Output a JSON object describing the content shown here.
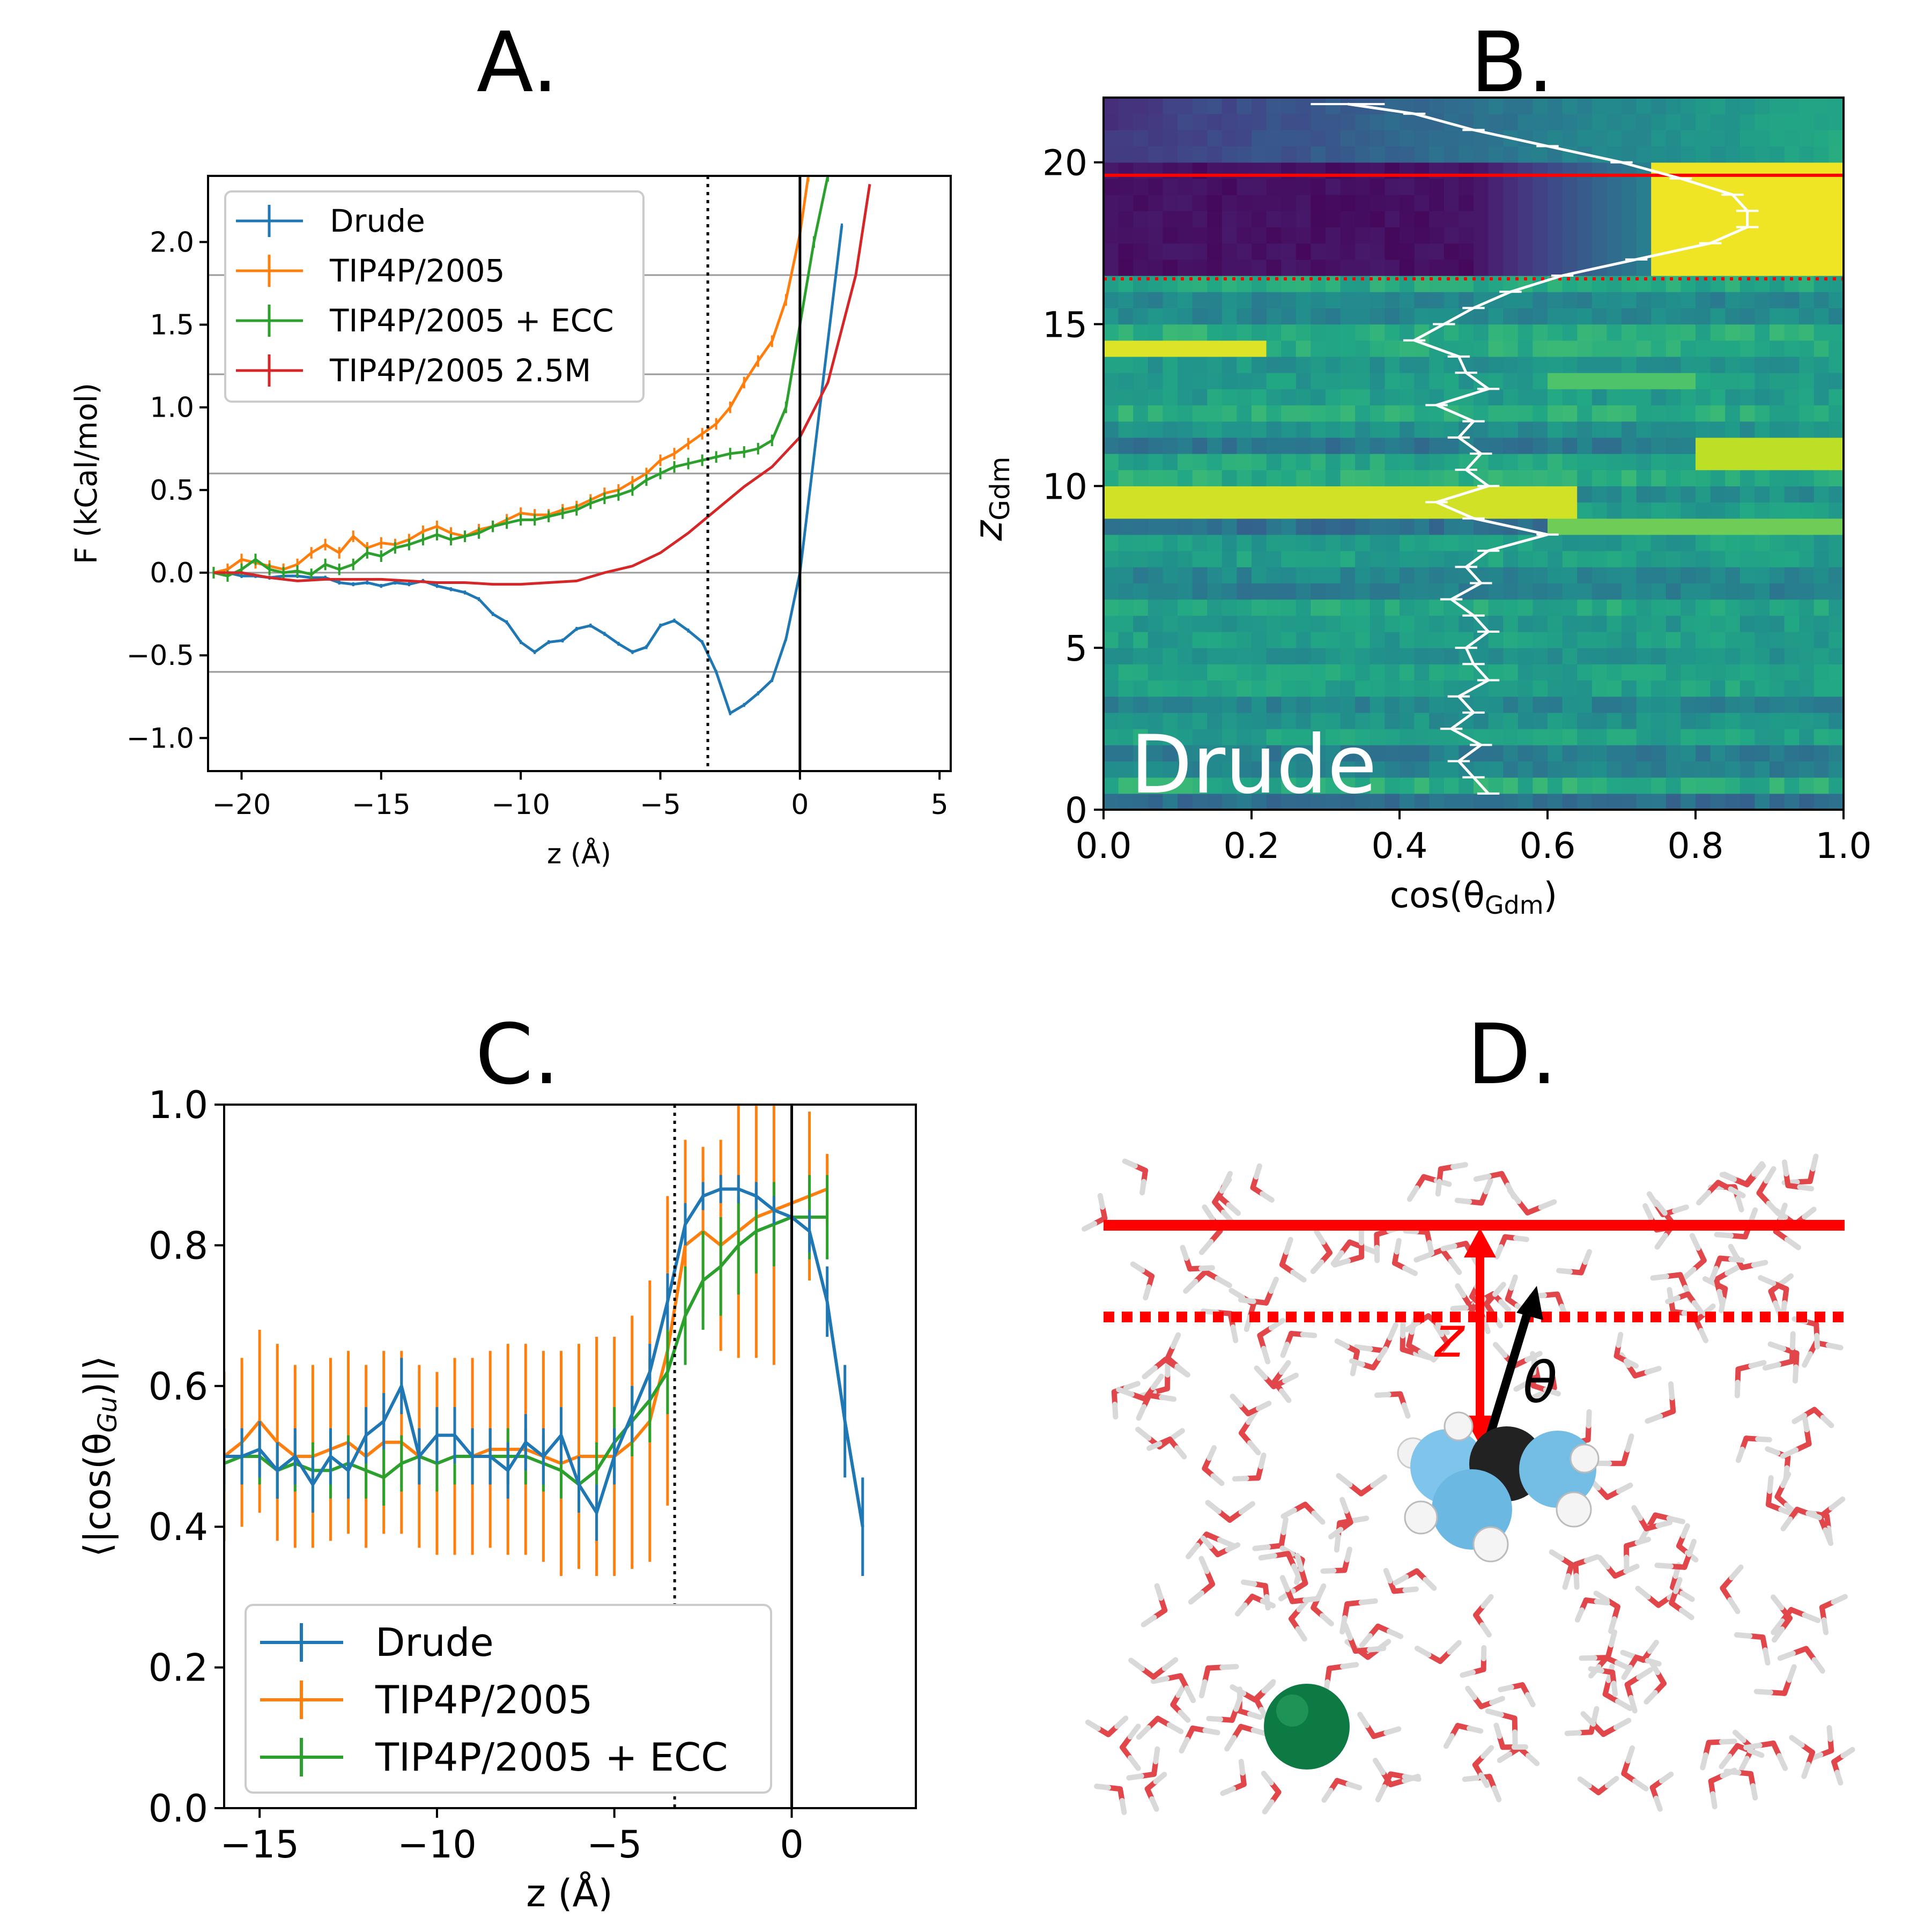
{
  "colors": {
    "drude": "#1f77b4",
    "tip4p": "#ff7f0e",
    "ecc": "#2ca02c",
    "salt": "#d62728",
    "interface_red": "#ff0000",
    "white_line": "#ffffff"
  },
  "chart_data": [
    {
      "panel": "A.",
      "type": "line",
      "xlabel": "z (Å)",
      "ylabel": "F (kCal/mol)",
      "xlim": [
        -21.2,
        5.4
      ],
      "ylim": [
        -1.2,
        2.4
      ],
      "xticks": [
        "−20",
        "−15",
        "−10",
        "−5",
        "0",
        "5"
      ],
      "xtick_values": [
        -20,
        -15,
        -10,
        -5,
        0,
        5
      ],
      "yticks": [
        "−1.0",
        "−0.5",
        "0.0",
        "0.5",
        "1.0",
        "1.5",
        "2.0"
      ],
      "ytick_values": [
        -1.0,
        -0.5,
        0.0,
        0.5,
        1.0,
        1.5,
        2.0
      ],
      "hlines": [
        -0.6,
        0.0,
        0.6,
        1.2,
        1.8
      ],
      "vline_dotted": -3.3,
      "vline_solid": 0,
      "legend": [
        "Drude",
        "TIP4P/2005",
        "TIP4P/2005 + ECC",
        "TIP4P/2005 2.5M"
      ],
      "series": [
        {
          "name": "Drude",
          "color": "#1f77b4",
          "x": [
            -21,
            -20.5,
            -20,
            -19.5,
            -19,
            -18.5,
            -18,
            -17.5,
            -17,
            -16.5,
            -16,
            -15.5,
            -15,
            -14.5,
            -14,
            -13.5,
            -13,
            -12.5,
            -12,
            -11.5,
            -11,
            -10.5,
            -10,
            -9.5,
            -9,
            -8.5,
            -8,
            -7.5,
            -7,
            -6.5,
            -6,
            -5.5,
            -5,
            -4.5,
            -4,
            -3.5,
            -3,
            -2.5,
            -2,
            -1.5,
            -1,
            -0.5,
            0,
            0.5,
            1,
            1.5
          ],
          "y": [
            0,
            0,
            -0.02,
            -0.02,
            -0.03,
            -0.02,
            -0.02,
            -0.03,
            -0.03,
            -0.06,
            -0.07,
            -0.06,
            -0.08,
            -0.06,
            -0.07,
            -0.05,
            -0.08,
            -0.1,
            -0.12,
            -0.16,
            -0.25,
            -0.3,
            -0.42,
            -0.48,
            -0.42,
            -0.41,
            -0.34,
            -0.32,
            -0.37,
            -0.43,
            -0.48,
            -0.45,
            -0.32,
            -0.29,
            -0.35,
            -0.42,
            -0.6,
            -0.85,
            -0.8,
            -0.73,
            -0.65,
            -0.4,
            0.0,
            0.7,
            1.4,
            2.1
          ]
        },
        {
          "name": "TIP4P/2005",
          "color": "#ff7f0e",
          "x": [
            -21,
            -20.5,
            -20,
            -19.5,
            -19,
            -18.5,
            -18,
            -17.5,
            -17,
            -16.5,
            -16,
            -15.5,
            -15,
            -14.5,
            -14,
            -13.5,
            -13,
            -12.5,
            -12,
            -11.5,
            -11,
            -10.5,
            -10,
            -9.5,
            -9,
            -8.5,
            -8,
            -7.5,
            -7,
            -6.5,
            -6,
            -5.5,
            -5,
            -4.5,
            -4,
            -3.5,
            -3,
            -2.5,
            -2,
            -1.5,
            -1,
            -0.5,
            0,
            0.3
          ],
          "y": [
            0,
            0.02,
            0.08,
            0.06,
            0.04,
            0.02,
            0.05,
            0.12,
            0.17,
            0.12,
            0.22,
            0.15,
            0.18,
            0.17,
            0.2,
            0.25,
            0.28,
            0.24,
            0.22,
            0.26,
            0.28,
            0.32,
            0.36,
            0.35,
            0.35,
            0.38,
            0.4,
            0.44,
            0.48,
            0.5,
            0.55,
            0.6,
            0.68,
            0.72,
            0.78,
            0.84,
            0.9,
            1.0,
            1.15,
            1.28,
            1.4,
            1.65,
            2.05,
            2.4
          ]
        },
        {
          "name": "TIP4P/2005 + ECC",
          "color": "#2ca02c",
          "x": [
            -21,
            -20.5,
            -20,
            -19.5,
            -19,
            -18.5,
            -18,
            -17.5,
            -17,
            -16.5,
            -16,
            -15.5,
            -15,
            -14.5,
            -14,
            -13.5,
            -13,
            -12.5,
            -12,
            -11.5,
            -11,
            -10.5,
            -10,
            -9.5,
            -9,
            -8.5,
            -8,
            -7.5,
            -7,
            -6.5,
            -6,
            -5.5,
            -5,
            -4.5,
            -4,
            -3.5,
            -3,
            -2.5,
            -2,
            -1.5,
            -1,
            -0.5,
            0,
            0.5,
            1
          ],
          "y": [
            0,
            -0.02,
            0.02,
            0.08,
            0.02,
            0,
            0.01,
            -0.01,
            0.05,
            0.02,
            0.05,
            0.12,
            0.1,
            0.15,
            0.17,
            0.2,
            0.23,
            0.2,
            0.22,
            0.24,
            0.28,
            0.3,
            0.32,
            0.32,
            0.34,
            0.36,
            0.38,
            0.42,
            0.45,
            0.47,
            0.5,
            0.56,
            0.6,
            0.64,
            0.66,
            0.68,
            0.7,
            0.72,
            0.73,
            0.75,
            0.8,
            1.0,
            1.5,
            2.0,
            2.4
          ]
        },
        {
          "name": "TIP4P/2005 2.5M",
          "color": "#d62728",
          "x": [
            -21,
            -20,
            -19,
            -18,
            -17,
            -16,
            -15,
            -14,
            -13,
            -12,
            -11,
            -10,
            -9,
            -8,
            -7,
            -6,
            -5,
            -4,
            -3,
            -2,
            -1,
            0,
            1,
            2,
            2.5
          ],
          "y": [
            0,
            0,
            -0.03,
            -0.05,
            -0.04,
            -0.04,
            -0.04,
            -0.05,
            -0.06,
            -0.06,
            -0.07,
            -0.07,
            -0.06,
            -0.05,
            0,
            0.04,
            0.12,
            0.24,
            0.38,
            0.52,
            0.64,
            0.82,
            1.15,
            1.8,
            2.35
          ]
        }
      ]
    },
    {
      "panel": "B.",
      "type": "heatmap",
      "xlabel": "cos(θ",
      "xlabel_sub": "Gdm",
      "ylabel": "z",
      "ylabel_sub": "Gdm",
      "xlim": [
        0.0,
        1.0
      ],
      "ylim": [
        0,
        22
      ],
      "xticks": [
        "0.0",
        "0.2",
        "0.4",
        "0.6",
        "0.8",
        "1.0"
      ],
      "xtick_values": [
        0.0,
        0.2,
        0.4,
        0.6,
        0.8,
        1.0
      ],
      "yticks": [
        "0",
        "5",
        "10",
        "15",
        "20"
      ],
      "ytick_values": [
        0,
        5,
        10,
        15,
        20
      ],
      "hline_solid": 19.6,
      "hline_dotted": 16.4,
      "annotation": "Drude",
      "mean_profile": {
        "z": [
          0.5,
          1.0,
          1.5,
          2.0,
          2.5,
          3.0,
          3.5,
          4.0,
          4.5,
          5.0,
          5.5,
          6.0,
          6.5,
          7.0,
          7.5,
          8.0,
          8.5,
          9.0,
          9.5,
          10.0,
          10.5,
          11.0,
          11.5,
          12.0,
          12.5,
          13.0,
          13.5,
          14.0,
          14.5,
          15.0,
          15.5,
          16.0,
          16.5,
          17.0,
          17.5,
          18.0,
          18.5,
          19.0,
          19.5,
          20.0,
          20.5,
          21.0,
          21.5,
          21.8
        ],
        "cos": [
          0.52,
          0.5,
          0.48,
          0.51,
          0.47,
          0.5,
          0.48,
          0.52,
          0.5,
          0.49,
          0.52,
          0.5,
          0.47,
          0.51,
          0.49,
          0.52,
          0.6,
          0.5,
          0.45,
          0.52,
          0.49,
          0.51,
          0.48,
          0.5,
          0.45,
          0.52,
          0.49,
          0.48,
          0.42,
          0.46,
          0.5,
          0.55,
          0.62,
          0.72,
          0.82,
          0.87,
          0.87,
          0.85,
          0.78,
          0.7,
          0.6,
          0.5,
          0.42,
          0.33
        ]
      }
    },
    {
      "panel": "C.",
      "type": "line",
      "xlabel": "z (Å)",
      "ylabel": "⟨|cos(θ",
      "ylabel_sub": "Gu",
      "ylabel_end": ")|⟩",
      "xlim": [
        -16,
        3.5
      ],
      "ylim": [
        0.0,
        1.0
      ],
      "xticks": [
        "−15",
        "−10",
        "−5",
        "0"
      ],
      "xtick_values": [
        -15,
        -10,
        -5,
        0
      ],
      "yticks": [
        "0.0",
        "0.2",
        "0.4",
        "0.6",
        "0.8",
        "1.0"
      ],
      "ytick_values": [
        0.0,
        0.2,
        0.4,
        0.6,
        0.8,
        1.0
      ],
      "vline_dotted": -3.3,
      "vline_solid": 0,
      "legend": [
        "Drude",
        "TIP4P/2005",
        "TIP4P/2005 + ECC"
      ],
      "series": [
        {
          "name": "Drude",
          "color": "#1f77b4",
          "x": [
            -16,
            -15.5,
            -15,
            -14.5,
            -14,
            -13.5,
            -13,
            -12.5,
            -12,
            -11.5,
            -11,
            -10.5,
            -10,
            -9.5,
            -9,
            -8.5,
            -8,
            -7.5,
            -7,
            -6.5,
            -6,
            -5.5,
            -5,
            -4.5,
            -4,
            -3.5,
            -3,
            -2.5,
            -2,
            -1.5,
            -1,
            -0.5,
            0,
            0.5,
            1,
            1.5,
            2
          ],
          "y": [
            0.5,
            0.5,
            0.51,
            0.48,
            0.5,
            0.46,
            0.5,
            0.48,
            0.53,
            0.55,
            0.6,
            0.5,
            0.53,
            0.53,
            0.5,
            0.5,
            0.48,
            0.52,
            0.5,
            0.53,
            0.46,
            0.42,
            0.5,
            0.56,
            0.62,
            0.72,
            0.83,
            0.87,
            0.88,
            0.88,
            0.87,
            0.85,
            0.84,
            0.82,
            0.72,
            0.55,
            0.4
          ],
          "err": [
            0.04,
            0.04,
            0.04,
            0.04,
            0.04,
            0.04,
            0.04,
            0.04,
            0.04,
            0.04,
            0.04,
            0.04,
            0.04,
            0.04,
            0.04,
            0.04,
            0.04,
            0.04,
            0.04,
            0.04,
            0.04,
            0.04,
            0.04,
            0.04,
            0.04,
            0.04,
            0.03,
            0.02,
            0.02,
            0.02,
            0.02,
            0.02,
            0.03,
            0.03,
            0.05,
            0.08,
            0.07
          ]
        },
        {
          "name": "TIP4P/2005",
          "color": "#ff7f0e",
          "x": [
            -16,
            -15.5,
            -15,
            -14.5,
            -14,
            -13.5,
            -13,
            -12.5,
            -12,
            -11.5,
            -11,
            -10.5,
            -10,
            -9.5,
            -9,
            -8.5,
            -8,
            -7.5,
            -7,
            -6.5,
            -6,
            -5.5,
            -5,
            -4.5,
            -4,
            -3.5,
            -3,
            -2.5,
            -2,
            -1.5,
            -1,
            -0.5,
            0,
            0.5,
            1
          ],
          "y": [
            0.5,
            0.52,
            0.55,
            0.52,
            0.5,
            0.5,
            0.51,
            0.52,
            0.5,
            0.52,
            0.52,
            0.5,
            0.49,
            0.5,
            0.5,
            0.51,
            0.51,
            0.51,
            0.5,
            0.49,
            0.5,
            0.5,
            0.5,
            0.52,
            0.55,
            0.65,
            0.8,
            0.82,
            0.8,
            0.82,
            0.84,
            0.85,
            0.86,
            0.87,
            0.88
          ],
          "err": [
            0.12,
            0.12,
            0.13,
            0.14,
            0.13,
            0.13,
            0.13,
            0.13,
            0.13,
            0.13,
            0.13,
            0.13,
            0.13,
            0.14,
            0.14,
            0.14,
            0.15,
            0.15,
            0.15,
            0.16,
            0.16,
            0.17,
            0.17,
            0.18,
            0.2,
            0.22,
            0.15,
            0.12,
            0.15,
            0.18,
            0.2,
            0.22,
            0.3,
            0.12,
            0.05
          ]
        },
        {
          "name": "TIP4P/2005 + ECC",
          "color": "#2ca02c",
          "x": [
            -16,
            -15.5,
            -15,
            -14.5,
            -14,
            -13.5,
            -13,
            -12.5,
            -12,
            -11.5,
            -11,
            -10.5,
            -10,
            -9.5,
            -9,
            -8.5,
            -8,
            -7.5,
            -7,
            -6.5,
            -6,
            -5.5,
            -5,
            -4.5,
            -4,
            -3.5,
            -3,
            -2.5,
            -2,
            -1.5,
            -1,
            -0.5,
            0,
            0.5,
            1
          ],
          "y": [
            0.49,
            0.5,
            0.5,
            0.48,
            0.49,
            0.48,
            0.48,
            0.49,
            0.48,
            0.47,
            0.49,
            0.5,
            0.49,
            0.5,
            0.5,
            0.5,
            0.5,
            0.5,
            0.49,
            0.48,
            0.46,
            0.48,
            0.52,
            0.55,
            0.58,
            0.62,
            0.7,
            0.75,
            0.77,
            0.8,
            0.82,
            0.83,
            0.84,
            0.84,
            0.84
          ],
          "err": [
            0.04,
            0.04,
            0.04,
            0.04,
            0.04,
            0.04,
            0.04,
            0.04,
            0.04,
            0.04,
            0.04,
            0.04,
            0.04,
            0.04,
            0.04,
            0.04,
            0.04,
            0.04,
            0.04,
            0.04,
            0.04,
            0.04,
            0.05,
            0.05,
            0.06,
            0.06,
            0.07,
            0.07,
            0.07,
            0.07,
            0.06,
            0.06,
            0.06,
            0.06,
            0.06
          ]
        }
      ]
    }
  ],
  "panel_d": {
    "title": "D.",
    "z_label": "z",
    "theta_label": "θ"
  }
}
